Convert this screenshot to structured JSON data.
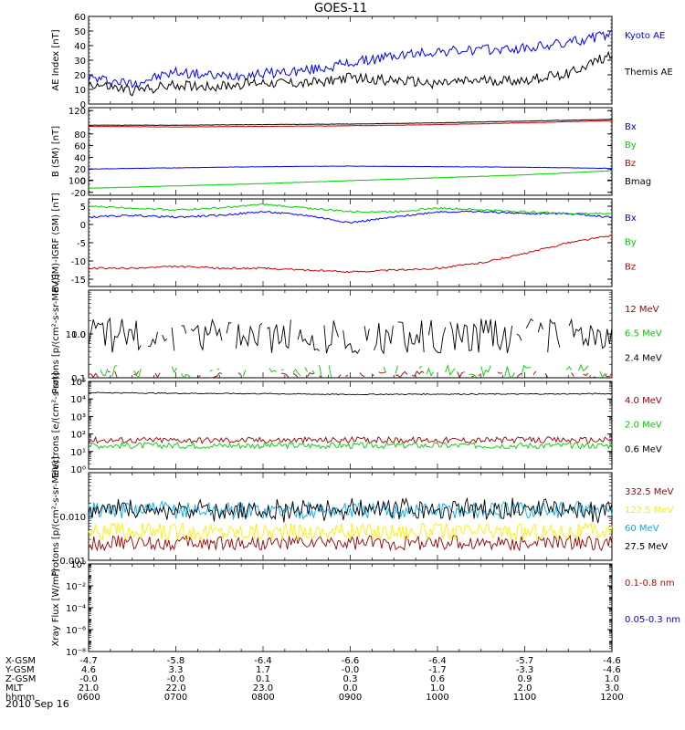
{
  "title": "GOES-11",
  "date_label": "2010 Sep 16",
  "x_axis": {
    "ticks": [
      "0600",
      "0700",
      "0800",
      "0900",
      "1000",
      "1100",
      "1200"
    ],
    "rows": [
      {
        "label": "X-GSM",
        "values": [
          "-4.7",
          "-5.8",
          "-6.4",
          "-6.6",
          "-6.4",
          "-5.7",
          "-4.6"
        ]
      },
      {
        "label": "Y-GSM",
        "values": [
          "4.6",
          "3.3",
          "1.7",
          "-0.0",
          "-1.7",
          "-3.3",
          "-4.6"
        ]
      },
      {
        "label": "Z-GSM",
        "values": [
          "-0.0",
          "-0.0",
          "0.1",
          "0.3",
          "0.6",
          "0.9",
          "1.0"
        ]
      },
      {
        "label": "MLT",
        "values": [
          "21.0",
          "22.0",
          "23.0",
          "0.0",
          "1.0",
          "2.0",
          "3.0"
        ]
      },
      {
        "label": "hhmm",
        "values": [
          "0600",
          "0700",
          "0800",
          "0900",
          "1000",
          "1100",
          "1200"
        ]
      }
    ]
  },
  "chart_data": [
    {
      "type": "line",
      "ylabel": "AE Index [nT]",
      "ylim": [
        0,
        60
      ],
      "yticks": [
        "0",
        "10",
        "20",
        "30",
        "40",
        "50",
        "60"
      ],
      "x": [
        "06:00",
        "06:30",
        "07:00",
        "07:30",
        "08:00",
        "08:30",
        "09:00",
        "09:30",
        "10:00",
        "10:30",
        "11:00",
        "11:30",
        "12:00"
      ],
      "series": [
        {
          "name": "Kyoto AE",
          "color": "#0000ff",
          "values": [
            18,
            14,
            22,
            19,
            21,
            23,
            28,
            33,
            36,
            37,
            38,
            42,
            48
          ]
        },
        {
          "name": "Themis AE",
          "color": "#000000",
          "values": [
            14,
            9,
            13,
            12,
            15,
            14,
            18,
            16,
            14,
            16,
            16,
            21,
            34
          ]
        }
      ]
    },
    {
      "type": "line",
      "ylabel": "B (SM) [nT]",
      "ylim": [
        -25,
        125
      ],
      "yticks": [
        "-20",
        "0",
        "20",
        "40",
        "60",
        "80",
        "100",
        "120"
      ],
      "x": [
        "06:00",
        "07:00",
        "08:00",
        "09:00",
        "10:00",
        "11:00",
        "12:00"
      ],
      "series": [
        {
          "name": "Bx",
          "color": "#0000ff",
          "values": [
            20,
            22,
            24,
            25,
            24,
            23,
            21
          ]
        },
        {
          "name": "By",
          "color": "#00cc00",
          "values": [
            -13,
            -9,
            -5,
            0,
            5,
            10,
            17
          ]
        },
        {
          "name": "Bz",
          "color": "#cc0000",
          "values": [
            93,
            92,
            93,
            94,
            96,
            99,
            103
          ]
        },
        {
          "name": "Bmag",
          "color": "#000000",
          "values": [
            95,
            95,
            96,
            97,
            99,
            102,
            105
          ]
        }
      ]
    },
    {
      "type": "line",
      "ylabel": "B (SM)-IGRF (SM) [nT]",
      "ylim": [
        -17,
        7
      ],
      "yticks": [
        "-15",
        "-10",
        "-5",
        "0",
        "5"
      ],
      "x": [
        "06:00",
        "06:30",
        "07:00",
        "07:30",
        "08:00",
        "08:30",
        "09:00",
        "09:30",
        "10:00",
        "10:30",
        "11:00",
        "11:30",
        "12:00"
      ],
      "series": [
        {
          "name": "Bx",
          "color": "#0000ff",
          "values": [
            2,
            2.5,
            2,
            2.5,
            3.5,
            2.5,
            0.5,
            2,
            3.5,
            3.5,
            3,
            3,
            2
          ]
        },
        {
          "name": "By",
          "color": "#00cc00",
          "values": [
            5,
            4.5,
            4,
            4.5,
            5.5,
            4.5,
            3.5,
            3.5,
            4.5,
            4,
            3.5,
            3,
            3
          ]
        },
        {
          "name": "Bz",
          "color": "#cc0000",
          "values": [
            -12,
            -12,
            -11.5,
            -12,
            -12,
            -12.5,
            -13,
            -12.5,
            -12,
            -10.5,
            -8,
            -5,
            -3
          ]
        }
      ]
    },
    {
      "type": "line",
      "ylabel": "Protons [p/(cm²-s-sr-MeV)]",
      "yscale": "log",
      "ylim": [
        0.1,
        10.0
      ],
      "yticks": [
        "0.1",
        "1.0",
        "10.0"
      ],
      "x": [
        "06:00",
        "12:00"
      ],
      "series": [
        {
          "name": "12 MeV",
          "color": "#990000",
          "values": [
            0.1,
            0.1
          ]
        },
        {
          "name": "6.5 MeV",
          "color": "#00cc00",
          "values": [
            0.14,
            0.14
          ]
        },
        {
          "name": "2.4 MeV",
          "color": "#000000",
          "values": [
            0.9,
            0.9
          ]
        }
      ]
    },
    {
      "type": "line",
      "ylabel": "Electrons [e/(cm²-s-sr)]",
      "yscale": "log",
      "ylim": [
        1,
        100000
      ],
      "yticks": [
        "10⁰",
        "10¹",
        "10²",
        "10³",
        "10⁴",
        "10⁵"
      ],
      "x": [
        "06:00",
        "07:00",
        "08:00",
        "09:00",
        "10:00",
        "11:00",
        "12:00"
      ],
      "series": [
        {
          "name": "4.0 MeV",
          "color": "#990000",
          "values": [
            45,
            45,
            45,
            45,
            45,
            45,
            45
          ]
        },
        {
          "name": "2.0 MeV",
          "color": "#00cc00",
          "values": [
            22,
            22,
            22,
            22,
            22,
            22,
            22
          ]
        },
        {
          "name": "0.6 MeV",
          "color": "#000000",
          "values": [
            23000,
            21000,
            20000,
            18000,
            19000,
            19000,
            20000
          ]
        }
      ]
    },
    {
      "type": "line",
      "ylabel": "Protons [p/(cm²-s-sr-MeV)]",
      "yscale": "log",
      "ylim": [
        0.001,
        0.1
      ],
      "yticks": [
        "0.001",
        "0.010"
      ],
      "x": [
        "06:00",
        "12:00"
      ],
      "series": [
        {
          "name": "332.5 MeV",
          "color": "#990000",
          "values": [
            0.0025,
            0.0025
          ]
        },
        {
          "name": "122.5 MeV",
          "color": "#ffee00",
          "values": [
            0.0045,
            0.0045
          ]
        },
        {
          "name": "60 MeV",
          "color": "#00aaee",
          "values": [
            0.014,
            0.014
          ]
        },
        {
          "name": "27.5 MeV",
          "color": "#000000",
          "values": [
            0.014,
            0.014
          ]
        }
      ]
    },
    {
      "type": "line",
      "ylabel": "Xray Flux [W/m²]",
      "yscale": "log",
      "ylim": [
        1e-08,
        1
      ],
      "yticks": [
        "10⁰",
        "10⁻²",
        "10⁻⁴",
        "10⁻⁶",
        "10⁻⁸"
      ],
      "x": [],
      "series": [
        {
          "name": "0.1-0.8 nm",
          "color": "#cc0000",
          "values": []
        },
        {
          "name": "0.05-0.3 nm",
          "color": "#0000ff",
          "values": []
        }
      ]
    }
  ]
}
